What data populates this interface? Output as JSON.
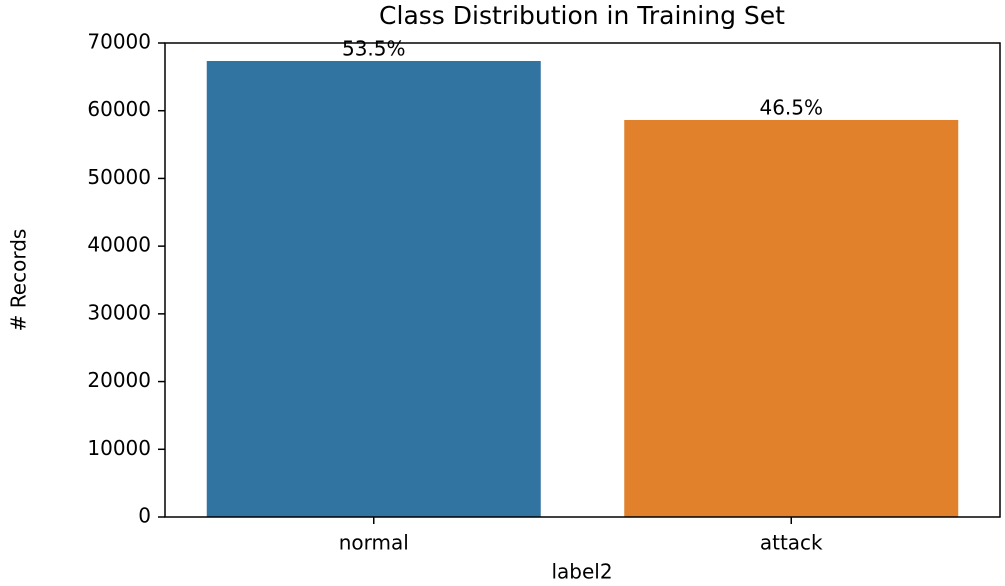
{
  "chart_data": {
    "type": "bar",
    "title": "Class Distribution in Training Set",
    "x_label": "label2",
    "y_label": "# Records",
    "categories": [
      "normal",
      "attack"
    ],
    "values": [
      67343,
      58630
    ],
    "bar_labels": [
      "53.5%",
      "46.5%"
    ],
    "colors": [
      "#3274a1",
      "#e1812c"
    ],
    "ylim": [
      0,
      70000
    ],
    "yticks": [
      0,
      10000,
      20000,
      30000,
      40000,
      50000,
      60000,
      70000
    ],
    "grid": false
  }
}
